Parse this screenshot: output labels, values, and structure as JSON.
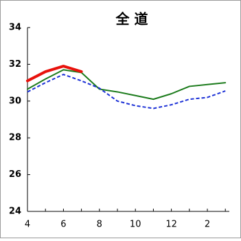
{
  "chart_data": {
    "type": "line",
    "title": "全 道",
    "categories": [
      4,
      null,
      6,
      null,
      8,
      null,
      10,
      null,
      12,
      null,
      2,
      null
    ],
    "series": [
      {
        "color": "#1a7a1a",
        "width": 2,
        "dash": false,
        "values": [
          30.65,
          31.2,
          31.7,
          31.55,
          30.65,
          30.5,
          30.3,
          30.1,
          30.4,
          30.8,
          30.9,
          31.0
        ]
      },
      {
        "color": "#1a2fd6",
        "width": 2,
        "dash": true,
        "values": [
          30.5,
          31.0,
          31.45,
          31.1,
          30.7,
          30.0,
          29.75,
          29.6,
          29.8,
          30.1,
          30.2,
          30.55
        ]
      },
      {
        "color": "#e8120c",
        "width": 4,
        "dash": false,
        "values": [
          31.1,
          31.6,
          31.9,
          31.6,
          null,
          null,
          null,
          null,
          null,
          null,
          null,
          null
        ]
      }
    ],
    "ylim": [
      24,
      34
    ],
    "yticks": [
      24,
      26,
      28,
      30,
      32,
      34
    ]
  }
}
